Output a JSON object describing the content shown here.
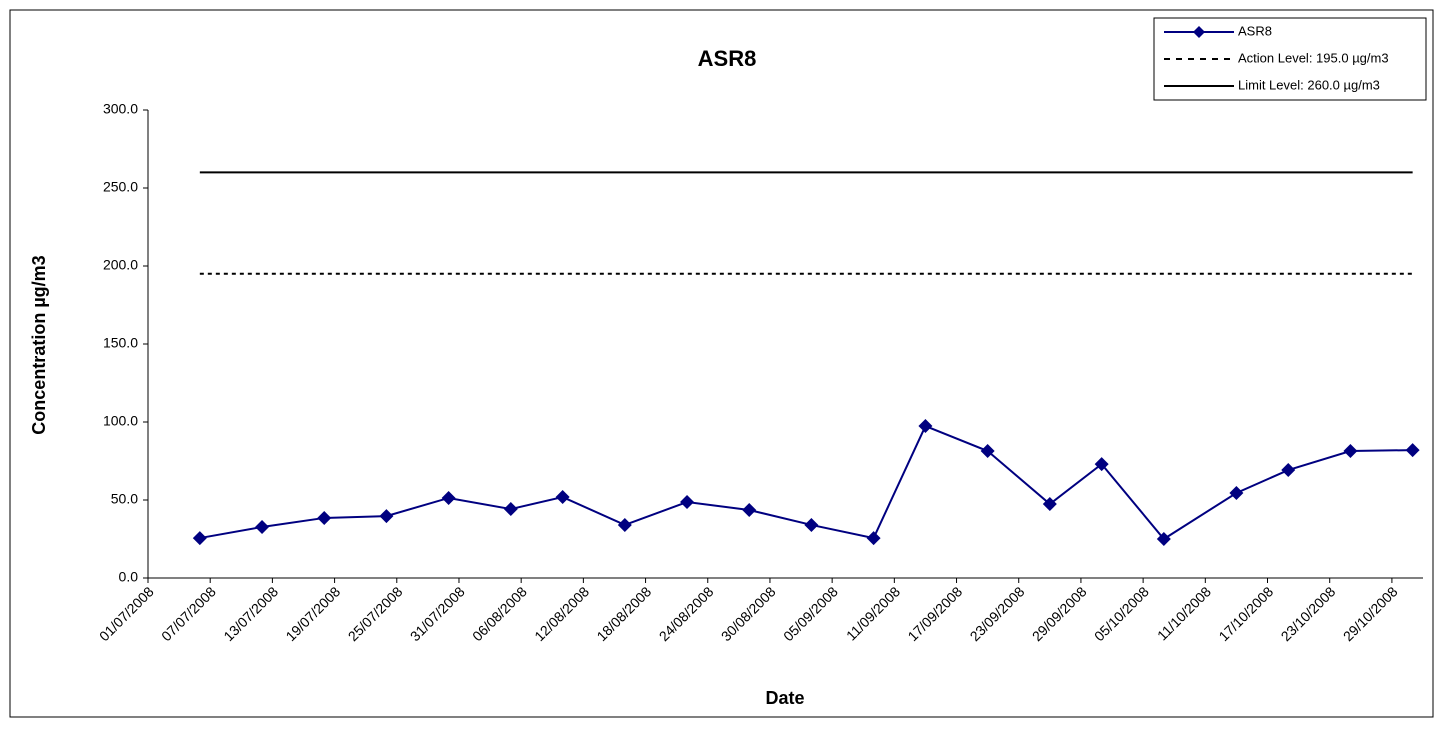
{
  "chart_data": {
    "type": "line",
    "title": "ASR8",
    "xlabel": "Date",
    "ylabel": "Concentration µg/m3",
    "x": [
      "06/07/2008",
      "12/07/2008",
      "18/07/2008",
      "24/07/2008",
      "30/07/2008",
      "05/08/2008",
      "10/08/2008",
      "16/08/2008",
      "22/08/2008",
      "28/08/2008",
      "03/09/2008",
      "09/09/2008",
      "14/09/2008",
      "20/09/2008",
      "26/09/2008",
      "01/10/2008",
      "07/10/2008",
      "14/10/2008",
      "19/10/2008",
      "25/10/2008",
      "31/10/2008"
    ],
    "series": [
      {
        "name": "ASR8",
        "color": "#000080",
        "values": [
          25.6,
          32.7,
          38.5,
          39.7,
          51.3,
          44.2,
          51.9,
          34.0,
          48.7,
          43.6,
          34.0,
          25.6,
          97.4,
          81.4,
          47.4,
          73.0,
          25.0,
          54.5,
          69.2,
          81.4,
          82.0
        ]
      }
    ],
    "reference_lines": [
      {
        "name": "Action Level: 195.0 µg/m3",
        "value": 195,
        "style": "dotted",
        "color": "#000000"
      },
      {
        "name": "Limit Level: 260.0 µg/m3",
        "value": 260,
        "style": "solid",
        "color": "#000000"
      }
    ],
    "xlim": [
      "01/07/2008",
      "01/11/2008"
    ],
    "xticks": [
      "01/07/2008",
      "07/07/2008",
      "13/07/2008",
      "19/07/2008",
      "25/07/2008",
      "31/07/2008",
      "06/08/2008",
      "12/08/2008",
      "18/08/2008",
      "24/08/2008",
      "30/08/2008",
      "05/09/2008",
      "11/09/2008",
      "17/09/2008",
      "23/09/2008",
      "29/09/2008",
      "05/10/2008",
      "11/10/2008",
      "17/10/2008",
      "23/10/2008",
      "29/10/2008"
    ],
    "ylim": [
      0,
      300
    ],
    "yticks": [
      {
        "value": 0,
        "label": "0.0"
      },
      {
        "value": 50,
        "label": "50.0"
      },
      {
        "value": 100,
        "label": "100.0"
      },
      {
        "value": 150,
        "label": "150.0"
      },
      {
        "value": 200,
        "label": "200.0"
      },
      {
        "value": 250,
        "label": "250.0"
      },
      {
        "value": 300,
        "label": "300.0"
      }
    ],
    "legend": "top-right",
    "grid": false
  }
}
